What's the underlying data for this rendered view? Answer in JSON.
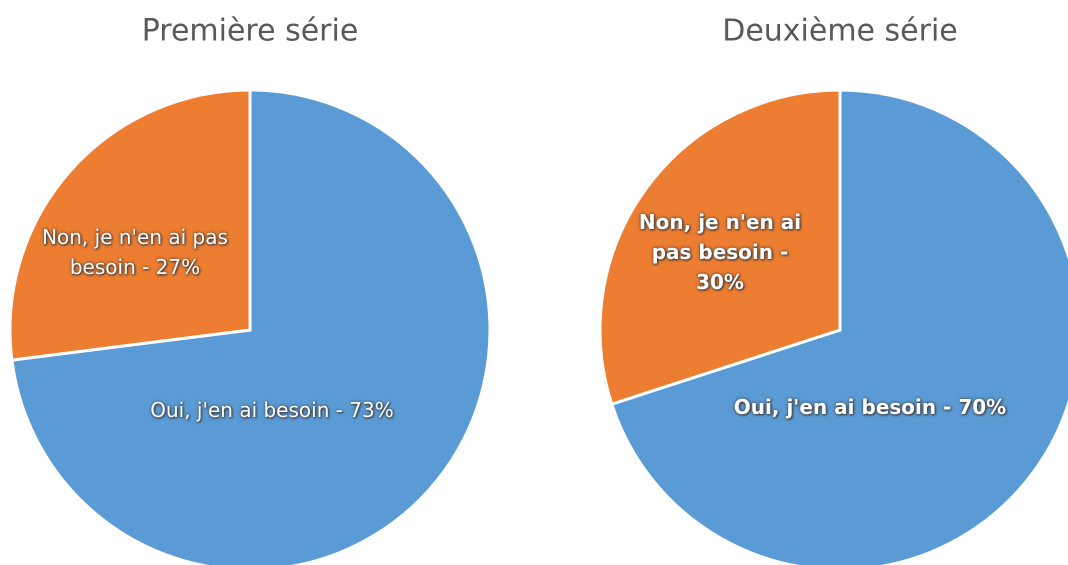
{
  "chart_data": [
    {
      "type": "pie",
      "title": "Première série",
      "values": [
        73,
        27
      ],
      "value_labels": [
        "Oui, j'en ai besoin - 73%",
        "Non, je n'en ai pas besoin - 27%"
      ],
      "colors": [
        "#5b9bd5",
        "#ed7d31"
      ]
    },
    {
      "type": "pie",
      "title": "Deuxième série",
      "values": [
        70,
        30
      ],
      "value_labels": [
        "Oui, j'en ai besoin - 70%",
        "Non, je n'en ai pas besoin - 30%"
      ],
      "colors": [
        "#5b9bd5",
        "#ed7d31"
      ]
    }
  ]
}
